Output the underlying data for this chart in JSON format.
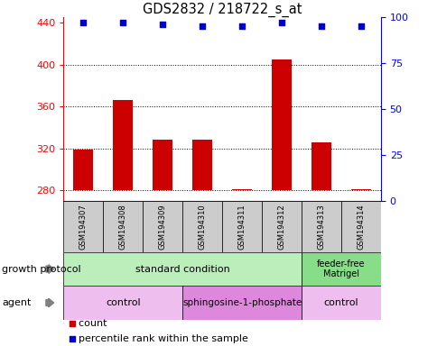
{
  "title": "GDS2832 / 218722_s_at",
  "samples": [
    "GSM194307",
    "GSM194308",
    "GSM194309",
    "GSM194310",
    "GSM194311",
    "GSM194312",
    "GSM194313",
    "GSM194314"
  ],
  "counts": [
    319,
    366,
    328,
    328,
    281,
    405,
    326,
    281
  ],
  "percentile_ranks": [
    97,
    97,
    96,
    95,
    95,
    97,
    95,
    95
  ],
  "ylim_left": [
    270,
    445
  ],
  "ylim_right": [
    0,
    100
  ],
  "yticks_left": [
    280,
    320,
    360,
    400,
    440
  ],
  "yticks_right": [
    0,
    25,
    50,
    75,
    100
  ],
  "bar_color": "#cc0000",
  "dot_color": "#0000cc",
  "bar_bottom": 280,
  "sample_box_color": "#cccccc",
  "gp_color_standard": "#bbeebb",
  "gp_color_feeder": "#88dd88",
  "agent_color_control": "#eebfee",
  "agent_color_sphingo": "#dd88dd",
  "growth_protocol_labels": [
    "standard condition",
    "feeder-free\nMatrigel"
  ],
  "agent_labels": [
    "control",
    "sphingosine-1-phosphate",
    "control"
  ]
}
